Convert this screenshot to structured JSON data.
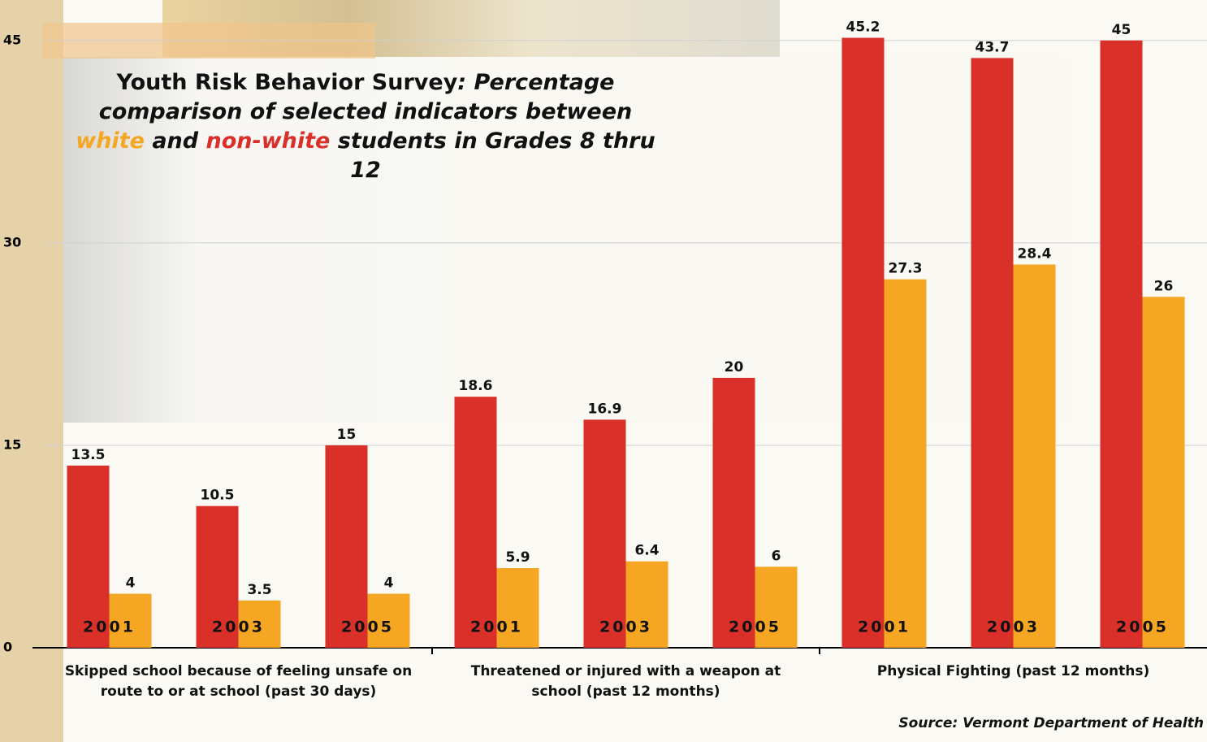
{
  "chart_data": {
    "type": "bar",
    "title_parts": [
      "Youth Risk Behavior Survey",
      ": Percentage comparison of selected indicators between",
      "and",
      "students in Grades 8 thru 12"
    ],
    "groups": [
      "Skipped school because of feeling unsafe on route to or at school (past 30 days)",
      "Threatened or injured with a weapon at school (past 12 months)",
      "Physical Fighting (past 12 months)"
    ],
    "categories": [
      "2001",
      "2003",
      "2005",
      "2001",
      "2003",
      "2005",
      "2001",
      "2003",
      "2005"
    ],
    "series": [
      {
        "name": "non-white",
        "color": "#d9302a",
        "values": [
          13.5,
          10.5,
          15,
          18.6,
          16.9,
          20,
          45.2,
          43.7,
          45
        ]
      },
      {
        "name": "white",
        "color": "#f5a623",
        "values": [
          4,
          3.5,
          4,
          5.9,
          6.4,
          6,
          27.3,
          28.4,
          26
        ]
      }
    ],
    "ylim": [
      0,
      48
    ],
    "yticks": [
      0,
      15,
      30,
      45
    ],
    "grid": true,
    "source": "Source: Vermont Department of Health"
  }
}
